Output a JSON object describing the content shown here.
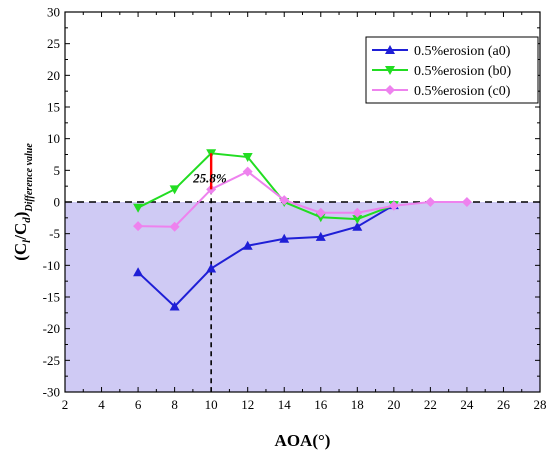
{
  "chart_data": {
    "type": "line",
    "xlabel": "AOA(°)",
    "ylabel_main": "(C",
    "ylabel_sub1": "l",
    "ylabel_mid": "/C",
    "ylabel_sub2": "d",
    "ylabel_close": ")",
    "ylabel_sub3": "Difference value",
    "xlim": [
      2,
      28
    ],
    "ylim": [
      -30,
      30
    ],
    "xticks": [
      2,
      4,
      6,
      8,
      10,
      12,
      14,
      16,
      18,
      20,
      22,
      24,
      26,
      28
    ],
    "yticks": [
      -30,
      -25,
      -20,
      -15,
      -10,
      -5,
      0,
      5,
      10,
      15,
      20,
      25,
      30
    ],
    "grid": false,
    "legend_position": "top-right",
    "shaded_region": {
      "y_from": -30,
      "y_to": 0,
      "color": "#cfcaf4"
    },
    "zero_line": {
      "y": 0,
      "style": "dashed",
      "color": "#000000"
    },
    "vertical_line": {
      "x": 10,
      "style": "dashed",
      "color": "#000000"
    },
    "highlight_segment": {
      "x": 10,
      "y_from": 2.0,
      "y_to": 7.7,
      "color": "#ff0000"
    },
    "annotation": {
      "text": "25.8%",
      "x": 10,
      "y": 3.7
    },
    "series": [
      {
        "name": "0.5%erosion (a0)",
        "color": "#1f1fd6",
        "marker": "triangle-up",
        "x": [
          6,
          8,
          10,
          12,
          14,
          16,
          18,
          20
        ],
        "y": [
          -11.1,
          -16.5,
          -10.5,
          -6.9,
          -5.8,
          -5.5,
          -3.9,
          -0.5
        ]
      },
      {
        "name": "0.5%erosion (b0)",
        "color": "#22dd22",
        "marker": "triangle-down",
        "x": [
          6,
          8,
          10,
          12,
          14,
          16,
          18,
          20
        ],
        "y": [
          -0.9,
          2.0,
          7.7,
          7.1,
          0.0,
          -2.4,
          -2.7,
          -0.5
        ]
      },
      {
        "name": "0.5%erosion (c0)",
        "color": "#ee82ee",
        "marker": "diamond",
        "x": [
          6,
          8,
          10,
          12,
          14,
          16,
          18,
          20,
          22,
          24
        ],
        "y": [
          -3.8,
          -3.9,
          2.0,
          4.8,
          0.3,
          -1.7,
          -1.7,
          -0.6,
          0.0,
          0.0
        ]
      }
    ]
  }
}
